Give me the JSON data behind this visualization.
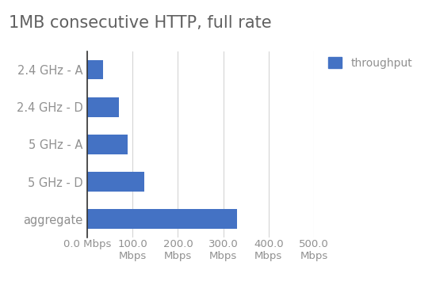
{
  "title": "1MB consecutive HTTP, full rate",
  "categories": [
    "aggregate",
    "5 GHz - D",
    "5 GHz - A",
    "2.4 GHz - D",
    "2.4 GHz - A"
  ],
  "values": [
    330,
    125,
    90,
    70,
    35
  ],
  "bar_color": "#4472c4",
  "legend_label": "throughput",
  "legend_color": "#4472c4",
  "xlim": [
    0,
    500
  ],
  "xticks": [
    0,
    100,
    200,
    300,
    400,
    500
  ],
  "xtick_labels": [
    "0.0 Mbps",
    "100.0\nMbps",
    "200.0\nMbps",
    "300.0\nMbps",
    "400.0\nMbps",
    "500.0\nMbps"
  ],
  "title_fontsize": 15,
  "label_fontsize": 10.5,
  "tick_fontsize": 9.5,
  "legend_fontsize": 10,
  "background_color": "#ffffff",
  "grid_color": "#d5d5d5",
  "bar_height": 0.52,
  "title_color": "#606060",
  "tick_color": "#909090",
  "spine_color": "#333333"
}
